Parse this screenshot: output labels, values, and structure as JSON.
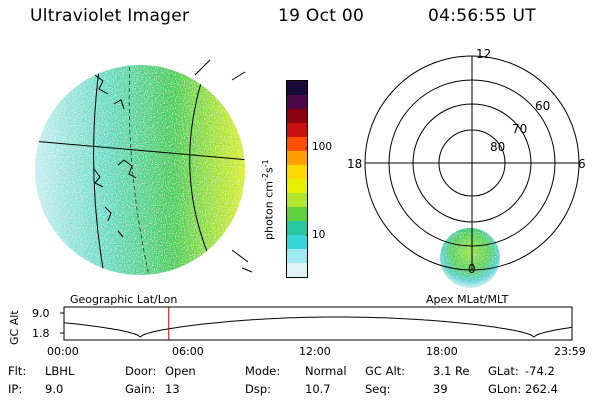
{
  "header": {
    "instrument": "Ultraviolet Imager",
    "date": "19 Oct 00",
    "time": "04:56:55 UT"
  },
  "geo_panel": {
    "label": "Geographic Lat/Lon"
  },
  "polar_panel": {
    "label": "Apex MLat/MLT",
    "mlt_labels": {
      "top": "12",
      "left": "18",
      "right": "6",
      "bottom": "0"
    },
    "lat_labels": [
      "60",
      "70",
      "80"
    ]
  },
  "colorbar": {
    "unit_main": "photon cm",
    "unit_exp1": "-2",
    "unit_mid": "s",
    "unit_exp2": "-1",
    "ticks": [
      "100",
      "10"
    ],
    "colors": [
      "#1a0a3a",
      "#4a0a4a",
      "#8a0010",
      "#c81010",
      "#ff5000",
      "#ffa000",
      "#ffd800",
      "#e8f000",
      "#b0e830",
      "#60d040",
      "#28c8a0",
      "#38d8d8",
      "#a0e8f0",
      "#e0f4f8"
    ]
  },
  "altitude_plot": {
    "ylabel": "GC Alt",
    "y_ticks": [
      "9.0",
      "1.8"
    ],
    "x_ticks": [
      "00:00",
      "06:00",
      "12:00",
      "18:00",
      "23:59"
    ],
    "marker_hour": 4.95
  },
  "footer": {
    "rows": [
      [
        {
          "label": "Flt:",
          "value": "LBHL"
        },
        {
          "label": "Door:",
          "value": "Open"
        },
        {
          "label": "Mode:",
          "value": "Normal"
        },
        {
          "label": "GC Alt:",
          "value": "3.1 Re"
        },
        {
          "label": "GLat:",
          "value": "-74.2"
        }
      ],
      [
        {
          "label": "IP:",
          "value": "9.0"
        },
        {
          "label": "Gain:",
          "value": "13"
        },
        {
          "label": "Dsp:",
          "value": "10.7"
        },
        {
          "label": "Seq:",
          "value": "39"
        },
        {
          "label": "GLon:",
          "value": "262.4"
        }
      ]
    ]
  }
}
